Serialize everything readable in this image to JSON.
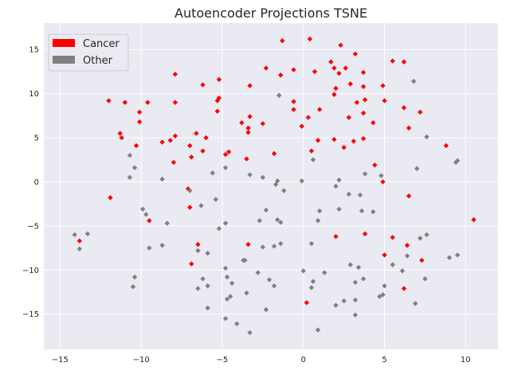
{
  "chart_data": {
    "type": "scatter",
    "title": "Autoencoder Projections TSNE",
    "xlabel": "",
    "ylabel": "",
    "xlim": [
      -16,
      12
    ],
    "ylim": [
      -19,
      18
    ],
    "xticks": [
      -15,
      -10,
      -5,
      0,
      5,
      10
    ],
    "yticks": [
      -15,
      -10,
      -5,
      0,
      5,
      10,
      15
    ],
    "grid": true,
    "legend_placement": "top-left",
    "series": [
      {
        "name": "Cancer",
        "color": "#ff0000",
        "marker": "diamond",
        "points": [
          [
            -12.0,
            9.2
          ],
          [
            -11.0,
            9.0
          ],
          [
            -10.1,
            7.9
          ],
          [
            -10.1,
            6.8
          ],
          [
            -10.3,
            4.1
          ],
          [
            -11.3,
            5.5
          ],
          [
            -11.2,
            5.0
          ],
          [
            -11.9,
            -1.8
          ],
          [
            -9.5,
            -4.4
          ],
          [
            -9.6,
            9.0
          ],
          [
            -8.7,
            4.5
          ],
          [
            -8.2,
            4.7
          ],
          [
            -7.9,
            5.2
          ],
          [
            -8.0,
            2.2
          ],
          [
            -7.0,
            4.1
          ],
          [
            -6.9,
            2.8
          ],
          [
            -6.6,
            5.5
          ],
          [
            -6.0,
            5.0
          ],
          [
            -6.2,
            3.5
          ],
          [
            -7.1,
            -0.8
          ],
          [
            -7.0,
            -2.9
          ],
          [
            -6.5,
            -7.1
          ],
          [
            -6.9,
            -9.3
          ],
          [
            -7.9,
            12.2
          ],
          [
            -7.9,
            9.0
          ],
          [
            -6.2,
            11.0
          ],
          [
            -5.2,
            11.6
          ],
          [
            -5.2,
            9.5
          ],
          [
            -5.3,
            9.2
          ],
          [
            -5.3,
            8.0
          ],
          [
            -4.6,
            3.4
          ],
          [
            -4.8,
            3.1
          ],
          [
            -3.8,
            6.7
          ],
          [
            -3.4,
            6.1
          ],
          [
            -3.4,
            5.6
          ],
          [
            -3.3,
            7.4
          ],
          [
            -2.5,
            6.6
          ],
          [
            -3.3,
            10.9
          ],
          [
            -3.5,
            2.6
          ],
          [
            -3.4,
            -7.1
          ],
          [
            -2.3,
            12.9
          ],
          [
            -1.3,
            16.0
          ],
          [
            -1.4,
            12.1
          ],
          [
            -0.6,
            12.7
          ],
          [
            -0.6,
            9.1
          ],
          [
            -0.6,
            8.2
          ],
          [
            -1.8,
            3.2
          ],
          [
            0.4,
            16.2
          ],
          [
            0.7,
            12.5
          ],
          [
            0.3,
            7.3
          ],
          [
            -0.1,
            6.3
          ],
          [
            0.5,
            3.5
          ],
          [
            1.0,
            8.2
          ],
          [
            0.9,
            4.7
          ],
          [
            0.2,
            -13.7
          ],
          [
            1.7,
            13.6
          ],
          [
            1.9,
            12.9
          ],
          [
            2.2,
            12.3
          ],
          [
            2.3,
            15.5
          ],
          [
            2.6,
            12.9
          ],
          [
            1.9,
            9.9
          ],
          [
            2.0,
            10.6
          ],
          [
            1.9,
            4.8
          ],
          [
            2.8,
            7.3
          ],
          [
            2.5,
            3.9
          ],
          [
            2.9,
            11.1
          ],
          [
            3.2,
            14.5
          ],
          [
            3.3,
            9.0
          ],
          [
            3.1,
            4.6
          ],
          [
            3.7,
            12.4
          ],
          [
            3.7,
            10.8
          ],
          [
            3.8,
            9.3
          ],
          [
            3.7,
            7.8
          ],
          [
            3.7,
            4.9
          ],
          [
            3.8,
            -5.9
          ],
          [
            4.3,
            6.7
          ],
          [
            4.4,
            1.9
          ],
          [
            4.9,
            10.9
          ],
          [
            5.0,
            9.2
          ],
          [
            4.9,
            0.0
          ],
          [
            5.0,
            -8.3
          ],
          [
            5.5,
            -6.3
          ],
          [
            5.5,
            13.7
          ],
          [
            6.2,
            13.6
          ],
          [
            6.2,
            8.4
          ],
          [
            6.5,
            6.1
          ],
          [
            6.5,
            -1.6
          ],
          [
            6.4,
            -7.2
          ],
          [
            6.2,
            -12.1
          ],
          [
            7.2,
            7.9
          ],
          [
            7.3,
            -8.9
          ],
          [
            8.8,
            4.1
          ],
          [
            10.5,
            -4.3
          ],
          [
            2.0,
            -6.2
          ],
          [
            -13.8,
            -6.7
          ]
        ]
      },
      {
        "name": "Other",
        "color": "#808080",
        "marker": "diamond",
        "points": [
          [
            -14.1,
            -6.0
          ],
          [
            -13.8,
            -7.6
          ],
          [
            -13.3,
            -5.9
          ],
          [
            -10.7,
            3.0
          ],
          [
            -10.7,
            0.5
          ],
          [
            -10.4,
            1.6
          ],
          [
            -9.9,
            -3.1
          ],
          [
            -9.7,
            -3.7
          ],
          [
            -9.5,
            -7.5
          ],
          [
            -10.4,
            -10.8
          ],
          [
            -10.5,
            -11.9
          ],
          [
            -8.7,
            0.3
          ],
          [
            -8.7,
            -7.2
          ],
          [
            -8.4,
            -4.7
          ],
          [
            -7.0,
            -1.0
          ],
          [
            -6.5,
            -7.8
          ],
          [
            -6.5,
            -12.1
          ],
          [
            -6.2,
            -11.0
          ],
          [
            -5.9,
            -8.1
          ],
          [
            -5.9,
            -11.8
          ],
          [
            -5.9,
            -14.3
          ],
          [
            -5.6,
            1.0
          ],
          [
            -5.4,
            -2.0
          ],
          [
            -5.2,
            -5.3
          ],
          [
            -6.3,
            -2.7
          ],
          [
            -4.8,
            -4.7
          ],
          [
            -4.8,
            1.6
          ],
          [
            -4.8,
            -9.8
          ],
          [
            -4.7,
            -10.8
          ],
          [
            -4.5,
            -13.0
          ],
          [
            -4.7,
            -13.3
          ],
          [
            -4.4,
            -11.5
          ],
          [
            -4.1,
            -16.1
          ],
          [
            -4.8,
            -15.5
          ],
          [
            -3.7,
            -8.9
          ],
          [
            -3.3,
            0.8
          ],
          [
            -3.5,
            -12.6
          ],
          [
            -3.3,
            -17.1
          ],
          [
            -2.8,
            -10.3
          ],
          [
            -2.7,
            -4.4
          ],
          [
            -2.5,
            0.5
          ],
          [
            -2.3,
            -3.2
          ],
          [
            -2.5,
            -7.4
          ],
          [
            -2.1,
            -11.1
          ],
          [
            -2.3,
            -14.5
          ],
          [
            -1.8,
            -7.3
          ],
          [
            -1.7,
            -0.3
          ],
          [
            -1.6,
            0.1
          ],
          [
            -1.6,
            -4.3
          ],
          [
            -1.4,
            -4.6
          ],
          [
            -1.4,
            -7.0
          ],
          [
            -1.2,
            -1.0
          ],
          [
            -1.5,
            9.8
          ],
          [
            -1.8,
            -11.8
          ],
          [
            -0.1,
            0.1
          ],
          [
            0.0,
            -10.1
          ],
          [
            0.6,
            2.5
          ],
          [
            0.5,
            -7.0
          ],
          [
            0.6,
            -11.3
          ],
          [
            0.5,
            -12.0
          ],
          [
            1.0,
            -3.3
          ],
          [
            0.9,
            -4.4
          ],
          [
            1.3,
            -10.3
          ],
          [
            0.9,
            -16.8
          ],
          [
            2.0,
            -0.5
          ],
          [
            2.2,
            0.2
          ],
          [
            2.2,
            -3.1
          ],
          [
            2.0,
            -14.0
          ],
          [
            2.5,
            -13.5
          ],
          [
            2.8,
            -1.4
          ],
          [
            2.9,
            -9.4
          ],
          [
            3.2,
            -11.4
          ],
          [
            3.2,
            -13.4
          ],
          [
            3.2,
            -15.1
          ],
          [
            3.4,
            -9.7
          ],
          [
            3.5,
            -1.5
          ],
          [
            3.6,
            -3.3
          ],
          [
            3.7,
            -11.0
          ],
          [
            3.8,
            0.9
          ],
          [
            4.3,
            -3.4
          ],
          [
            4.7,
            -13.0
          ],
          [
            4.8,
            0.7
          ],
          [
            4.9,
            -12.8
          ],
          [
            5.0,
            -11.8
          ],
          [
            5.5,
            -9.4
          ],
          [
            6.1,
            -10.1
          ],
          [
            6.4,
            -8.4
          ],
          [
            6.8,
            11.4
          ],
          [
            6.9,
            -13.8
          ],
          [
            7.0,
            1.5
          ],
          [
            7.2,
            -6.4
          ],
          [
            7.6,
            5.1
          ],
          [
            7.6,
            -6.0
          ],
          [
            7.5,
            -11.0
          ],
          [
            9.0,
            -8.6
          ],
          [
            9.4,
            2.2
          ],
          [
            9.5,
            2.4
          ],
          [
            9.5,
            -8.3
          ],
          [
            -3.6,
            -8.9
          ]
        ]
      }
    ]
  }
}
